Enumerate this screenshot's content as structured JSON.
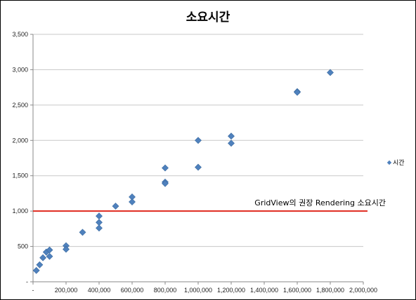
{
  "chart_data": {
    "type": "scatter",
    "title": "소요시간",
    "xlabel": "",
    "ylabel": "",
    "xlim": [
      0,
      2000000
    ],
    "ylim": [
      0,
      3500
    ],
    "x_ticks": [
      0,
      200000,
      400000,
      600000,
      800000,
      1000000,
      1200000,
      1400000,
      1600000,
      1800000,
      2000000
    ],
    "x_tick_labels": [
      "-",
      "200,000",
      "400,000",
      "600,000",
      "800,000",
      "1,000,000",
      "1,200,000",
      "1,400,000",
      "1,600,000",
      "1,800,000",
      "2,000,000"
    ],
    "y_ticks": [
      0,
      500,
      1000,
      1500,
      2000,
      2500,
      3000,
      3500
    ],
    "y_tick_labels": [
      "-",
      "500",
      "1,000",
      "1,500",
      "2,000",
      "2,500",
      "3,000",
      "3,500"
    ],
    "grid": "horizontal",
    "legend_position": "right",
    "series": [
      {
        "name": "시간",
        "color": "#4f81bd",
        "marker": "diamond",
        "points": [
          [
            20000,
            160
          ],
          [
            40000,
            240
          ],
          [
            60000,
            340
          ],
          [
            80000,
            420
          ],
          [
            100000,
            450
          ],
          [
            100000,
            360
          ],
          [
            200000,
            510
          ],
          [
            200000,
            460
          ],
          [
            300000,
            700
          ],
          [
            400000,
            930
          ],
          [
            400000,
            840
          ],
          [
            400000,
            760
          ],
          [
            500000,
            1070
          ],
          [
            600000,
            1200
          ],
          [
            600000,
            1130
          ],
          [
            800000,
            1610
          ],
          [
            800000,
            1410
          ],
          [
            800000,
            1390
          ],
          [
            1000000,
            2000
          ],
          [
            1000000,
            1620
          ],
          [
            1200000,
            2060
          ],
          [
            1200000,
            1960
          ],
          [
            1600000,
            2690
          ],
          [
            1600000,
            2680
          ],
          [
            1800000,
            2960
          ]
        ]
      }
    ],
    "reference_line": {
      "y": 1000,
      "color": "#e0281d",
      "label": "GridView의 권장 Rendering 소요시간"
    }
  }
}
